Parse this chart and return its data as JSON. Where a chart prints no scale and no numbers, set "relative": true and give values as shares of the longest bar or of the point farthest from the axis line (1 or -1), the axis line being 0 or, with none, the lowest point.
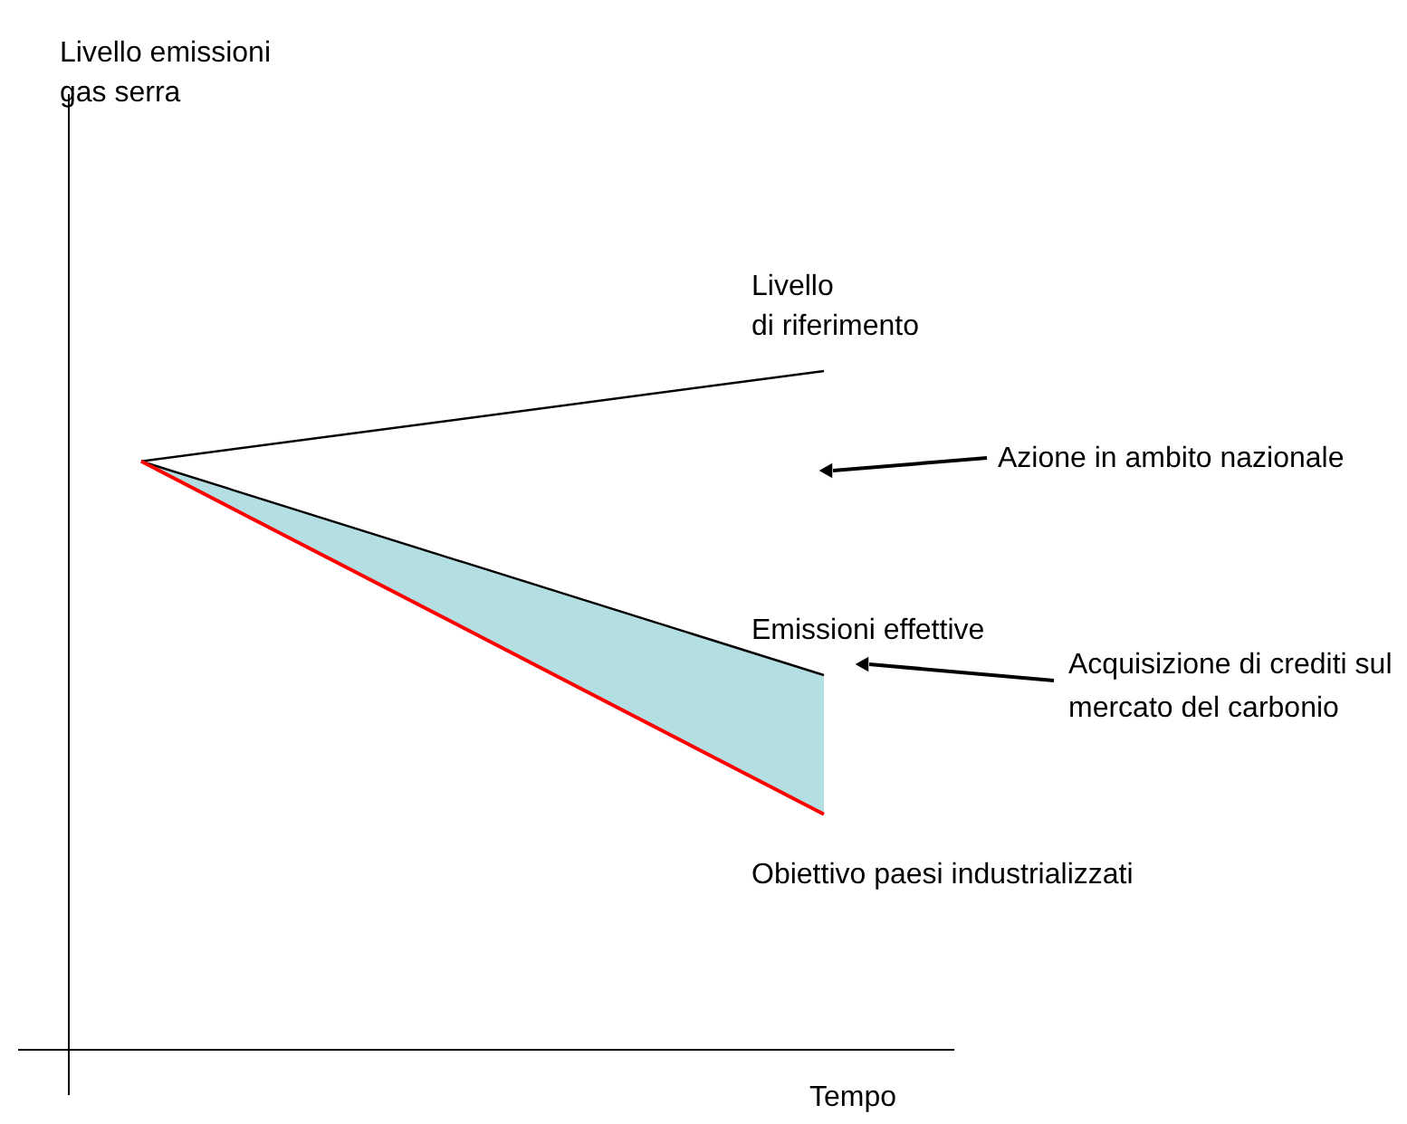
{
  "chart_data": {
    "type": "line",
    "relative": true,
    "xlabel": "Tempo",
    "categories": [
      null,
      null
    ],
    "series": [
      {
        "name": "Livello\ndi riferimento",
        "color": "#000000",
        "values": [
          0.867,
          1.0
        ]
      },
      {
        "name": "Emissioni effettive",
        "color": "#000000",
        "values": [
          0.867,
          0.552
        ],
        "lower": [
          0.867,
          0.347
        ],
        "upper": [
          0.867,
          0.552
        ]
      },
      {
        "name": "Obiettivo paesi industrializzati",
        "color": "#ff0000",
        "values": [
          0.867,
          0.347
        ]
      }
    ],
    "annotations": [
      "Livello emissioni\ngas serra",
      "Azione in ambito nazionale",
      "Acquisizione di crediti sul\nmercato del carbonio"
    ]
  }
}
